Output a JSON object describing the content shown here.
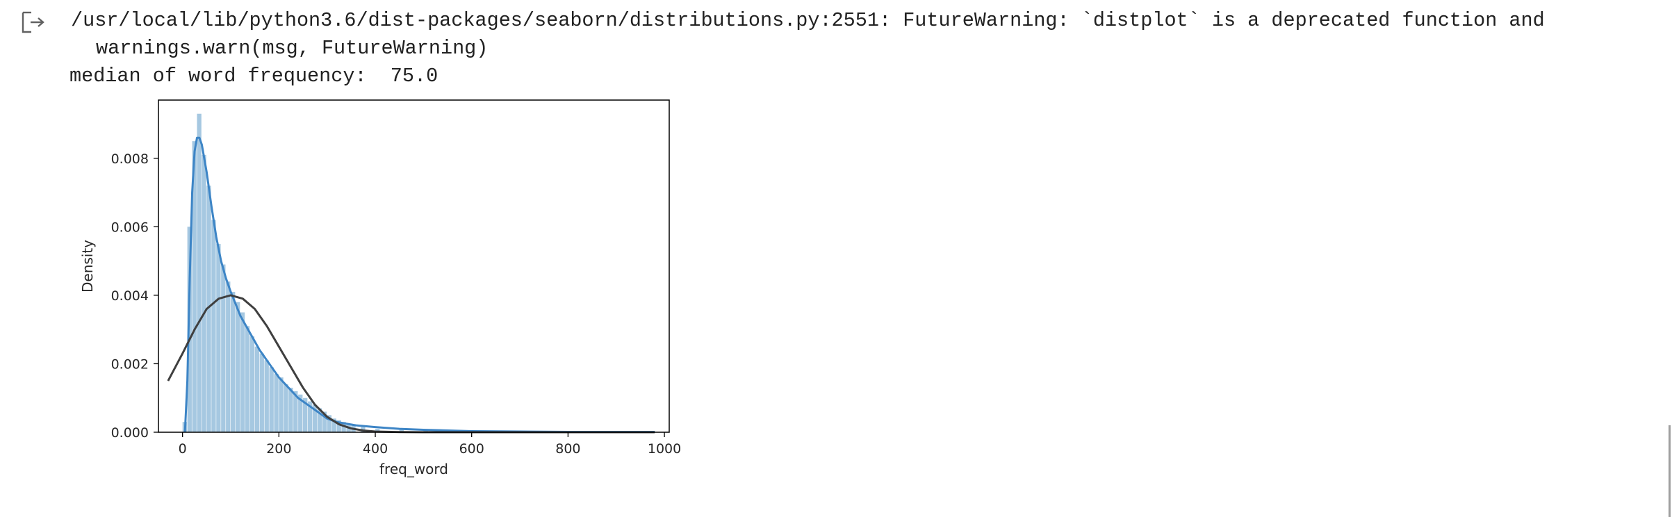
{
  "output": {
    "icon": "output-arrow-icon",
    "warning_line": "/usr/local/lib/python3.6/dist-packages/seaborn/distributions.py:2551: FutureWarning: `distplot` is a deprecated function and",
    "warning_continuation": "warnings.warn(msg, FutureWarning)",
    "median_line": "median of word frequency:  75.0"
  },
  "chart_data": {
    "type": "histogram",
    "xlabel": "freq_word",
    "ylabel": "Density",
    "xlim": [
      -50,
      1010
    ],
    "ylim": [
      0,
      0.0097
    ],
    "x_ticks": [
      0,
      200,
      400,
      600,
      800,
      1000
    ],
    "x_tick_labels": [
      "0",
      "200",
      "400",
      "600",
      "800",
      "1000"
    ],
    "y_ticks": [
      0.0,
      0.002,
      0.004,
      0.006,
      0.008
    ],
    "y_tick_labels": [
      "0.000",
      "0.002",
      "0.004",
      "0.006",
      "0.008"
    ],
    "bin_width": 10,
    "bins": [
      {
        "x0": 0,
        "value": 0.0003
      },
      {
        "x0": 10,
        "value": 0.006
      },
      {
        "x0": 20,
        "value": 0.0085
      },
      {
        "x0": 30,
        "value": 0.0093
      },
      {
        "x0": 40,
        "value": 0.0081
      },
      {
        "x0": 50,
        "value": 0.0072
      },
      {
        "x0": 60,
        "value": 0.0062
      },
      {
        "x0": 70,
        "value": 0.0055
      },
      {
        "x0": 80,
        "value": 0.0049
      },
      {
        "x0": 90,
        "value": 0.0044
      },
      {
        "x0": 100,
        "value": 0.0041
      },
      {
        "x0": 110,
        "value": 0.0038
      },
      {
        "x0": 120,
        "value": 0.0035
      },
      {
        "x0": 130,
        "value": 0.0031
      },
      {
        "x0": 140,
        "value": 0.0028
      },
      {
        "x0": 150,
        "value": 0.0025
      },
      {
        "x0": 160,
        "value": 0.0023
      },
      {
        "x0": 170,
        "value": 0.0021
      },
      {
        "x0": 180,
        "value": 0.0019
      },
      {
        "x0": 190,
        "value": 0.0017
      },
      {
        "x0": 200,
        "value": 0.0016
      },
      {
        "x0": 210,
        "value": 0.0014
      },
      {
        "x0": 220,
        "value": 0.0013
      },
      {
        "x0": 230,
        "value": 0.0012
      },
      {
        "x0": 240,
        "value": 0.0011
      },
      {
        "x0": 250,
        "value": 0.001
      },
      {
        "x0": 260,
        "value": 0.0009
      },
      {
        "x0": 270,
        "value": 0.0008
      },
      {
        "x0": 280,
        "value": 0.0007
      },
      {
        "x0": 290,
        "value": 0.0006
      },
      {
        "x0": 300,
        "value": 0.0005
      },
      {
        "x0": 310,
        "value": 0.0004
      },
      {
        "x0": 320,
        "value": 0.00035
      },
      {
        "x0": 330,
        "value": 0.0003
      },
      {
        "x0": 340,
        "value": 0.00025
      },
      {
        "x0": 350,
        "value": 0.0002
      },
      {
        "x0": 370,
        "value": 0.00015
      },
      {
        "x0": 400,
        "value": 0.0001
      },
      {
        "x0": 450,
        "value": 7e-05
      },
      {
        "x0": 500,
        "value": 5e-05
      },
      {
        "x0": 550,
        "value": 4e-05
      },
      {
        "x0": 600,
        "value": 3e-05
      },
      {
        "x0": 700,
        "value": 2e-05
      },
      {
        "x0": 800,
        "value": 1e-05
      },
      {
        "x0": 900,
        "value": 1e-05
      }
    ],
    "series": [
      {
        "color": "#3d85c6",
        "x": [
          5,
          10,
          15,
          20,
          25,
          30,
          35,
          40,
          50,
          60,
          70,
          80,
          90,
          100,
          120,
          140,
          160,
          180,
          200,
          220,
          240,
          260,
          280,
          300,
          320,
          340,
          360,
          400,
          450,
          500,
          550,
          600,
          700,
          800,
          900,
          980
        ],
        "y": [
          0.0,
          0.0015,
          0.0045,
          0.007,
          0.0082,
          0.0086,
          0.0086,
          0.0084,
          0.0076,
          0.0066,
          0.0057,
          0.005,
          0.0045,
          0.0041,
          0.0034,
          0.0029,
          0.0024,
          0.002,
          0.0016,
          0.0013,
          0.001,
          0.0008,
          0.0006,
          0.0004,
          0.0003,
          0.00025,
          0.0002,
          0.00015,
          0.0001,
          7e-05,
          5e-05,
          3e-05,
          2e-05,
          1e-05,
          1e-05,
          1e-05
        ]
      },
      {
        "color": "#3f3f3f",
        "x": [
          -30,
          0,
          25,
          50,
          75,
          100,
          125,
          150,
          175,
          200,
          225,
          250,
          275,
          300,
          325,
          350,
          375,
          400,
          450,
          500,
          600,
          700,
          800,
          900,
          980
        ],
        "y": [
          0.0015,
          0.0023,
          0.003,
          0.0036,
          0.0039,
          0.004,
          0.0039,
          0.0036,
          0.0031,
          0.0025,
          0.0019,
          0.0013,
          0.0008,
          0.00045,
          0.00023,
          0.00011,
          5e-05,
          2e-05,
          5e-06,
          0.0,
          0.0,
          0.0,
          0.0,
          0.0,
          0.0
        ]
      }
    ]
  }
}
